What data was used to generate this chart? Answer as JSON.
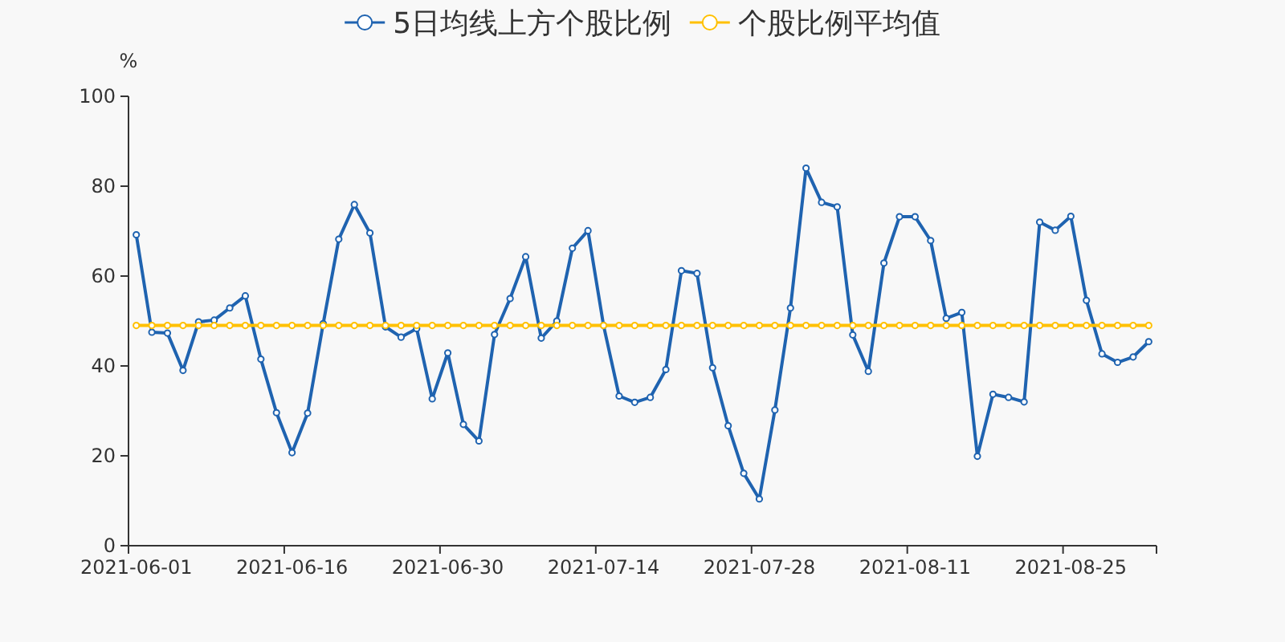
{
  "chart_data": {
    "type": "line",
    "categories": [
      "2021-06-01",
      null,
      null,
      null,
      null,
      null,
      null,
      null,
      null,
      null,
      "2021-06-16",
      null,
      null,
      null,
      null,
      null,
      null,
      null,
      null,
      null,
      "2021-06-30",
      null,
      null,
      null,
      null,
      null,
      null,
      null,
      null,
      null,
      "2021-07-14",
      null,
      null,
      null,
      null,
      null,
      null,
      null,
      null,
      null,
      "2021-07-28",
      null,
      null,
      null,
      null,
      null,
      null,
      null,
      null,
      null,
      "2021-08-11",
      null,
      null,
      null,
      null,
      null,
      null,
      null,
      null,
      null,
      "2021-08-25",
      null,
      null,
      null,
      null,
      null
    ],
    "series": [
      {
        "name": "5日均线上方个股比例",
        "color": "#1f63b0",
        "values": [
          69.2,
          47.5,
          47.3,
          39.0,
          49.8,
          50.2,
          52.9,
          55.6,
          41.5,
          29.6,
          20.7,
          29.5,
          49.4,
          68.2,
          75.9,
          69.6,
          48.7,
          46.4,
          48.3,
          32.7,
          42.9,
          27.0,
          23.3,
          47.0,
          55.0,
          64.3,
          46.2,
          50.0,
          66.2,
          70.1,
          49.0,
          33.3,
          31.9,
          33.0,
          39.2,
          61.2,
          60.6,
          39.6,
          26.7,
          16.1,
          10.4,
          30.2,
          52.9,
          84.0,
          76.4,
          75.4,
          46.9,
          38.8,
          62.9,
          73.2,
          73.2,
          67.9,
          50.6,
          51.9,
          19.9,
          33.7,
          33.0,
          32.0,
          72.0,
          70.2,
          73.3,
          54.6,
          42.7,
          40.8,
          42.0,
          45.4
        ]
      },
      {
        "name": "个股比例平均值",
        "color": "#ffc000",
        "values": [
          49,
          49,
          49,
          49,
          49,
          49,
          49,
          49,
          49,
          49,
          49,
          49,
          49,
          49,
          49,
          49,
          49,
          49,
          49,
          49,
          49,
          49,
          49,
          49,
          49,
          49,
          49,
          49,
          49,
          49,
          49,
          49,
          49,
          49,
          49,
          49,
          49,
          49,
          49,
          49,
          49,
          49,
          49,
          49,
          49,
          49,
          49,
          49,
          49,
          49,
          49,
          49,
          49,
          49,
          49,
          49,
          49,
          49,
          49,
          49,
          49,
          49,
          49,
          49,
          49,
          49
        ]
      }
    ],
    "ylabel": "%",
    "ylim": [
      0,
      100
    ],
    "yticks": [
      0,
      20,
      40,
      60,
      80,
      100
    ],
    "legend": "top",
    "marker": "circle",
    "line_style": "solid"
  }
}
